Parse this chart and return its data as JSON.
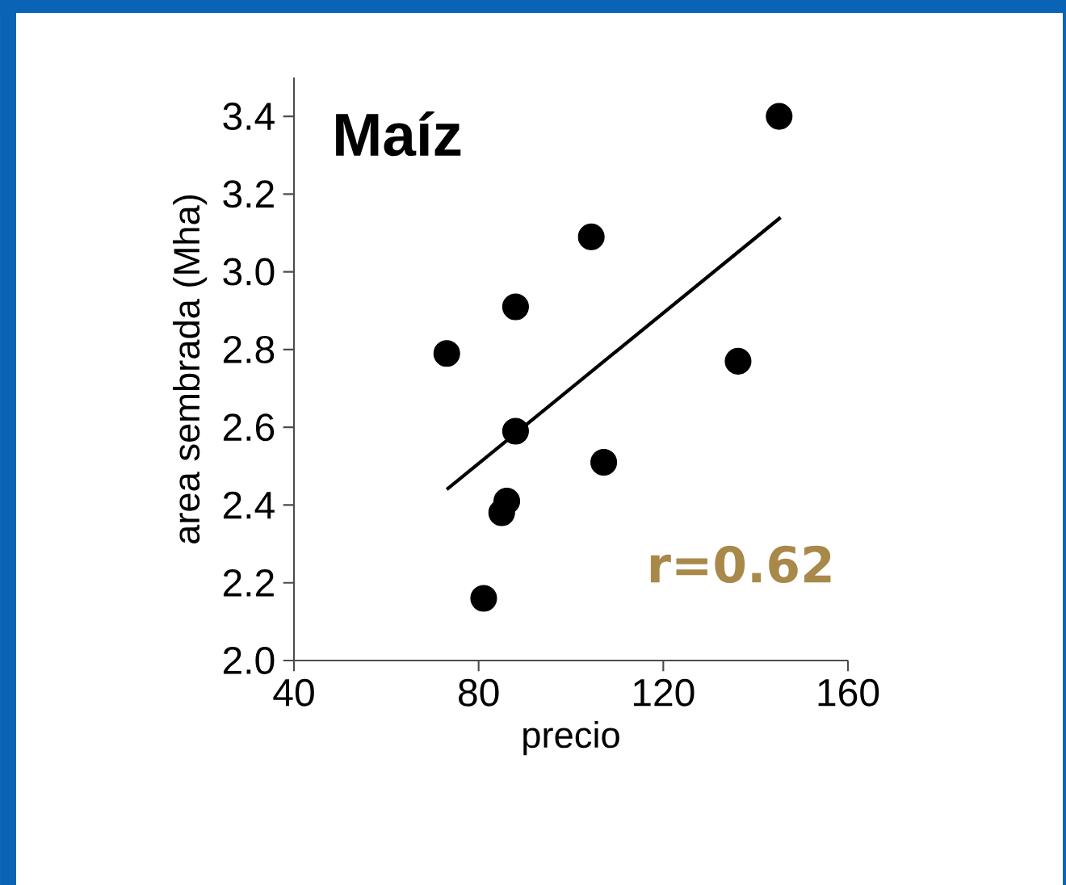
{
  "chart_data": {
    "type": "scatter",
    "title": "Maíz",
    "xlabel": "precio",
    "ylabel": "area sembrada (Mha)",
    "annotations": [
      "r=0.62"
    ],
    "xlim": [
      40,
      160
    ],
    "xticks": [
      40,
      80,
      120,
      160
    ],
    "ylim": [
      2.0,
      3.5
    ],
    "yticks": [
      {
        "value": 2.0,
        "label": "2.0"
      },
      {
        "value": 2.2,
        "label": "2.2"
      },
      {
        "value": 2.4,
        "label": "2.4"
      },
      {
        "value": 2.6,
        "label": "2.6"
      },
      {
        "value": 2.8,
        "label": "2.8"
      },
      {
        "value": 3.0,
        "label": "3.0"
      },
      {
        "value": 3.2,
        "label": "3.2"
      },
      {
        "value": 3.4,
        "label": "3.4"
      }
    ],
    "grid": false,
    "series": [
      {
        "color": "#000000",
        "marker": "circle",
        "x": [
          145.1,
          104.4,
          88.0,
          73.1,
          136.2,
          88.0,
          107.1,
          86.1,
          85.0,
          81.1
        ],
        "values": [
          3.4,
          3.09,
          2.91,
          2.79,
          2.77,
          2.59,
          2.51,
          2.41,
          2.38,
          2.16
        ]
      },
      {
        "type": "line",
        "color": "#000000",
        "marker": "none",
        "x": [
          73.1,
          145.4
        ],
        "values": [
          2.44,
          3.14
        ]
      }
    ]
  }
}
